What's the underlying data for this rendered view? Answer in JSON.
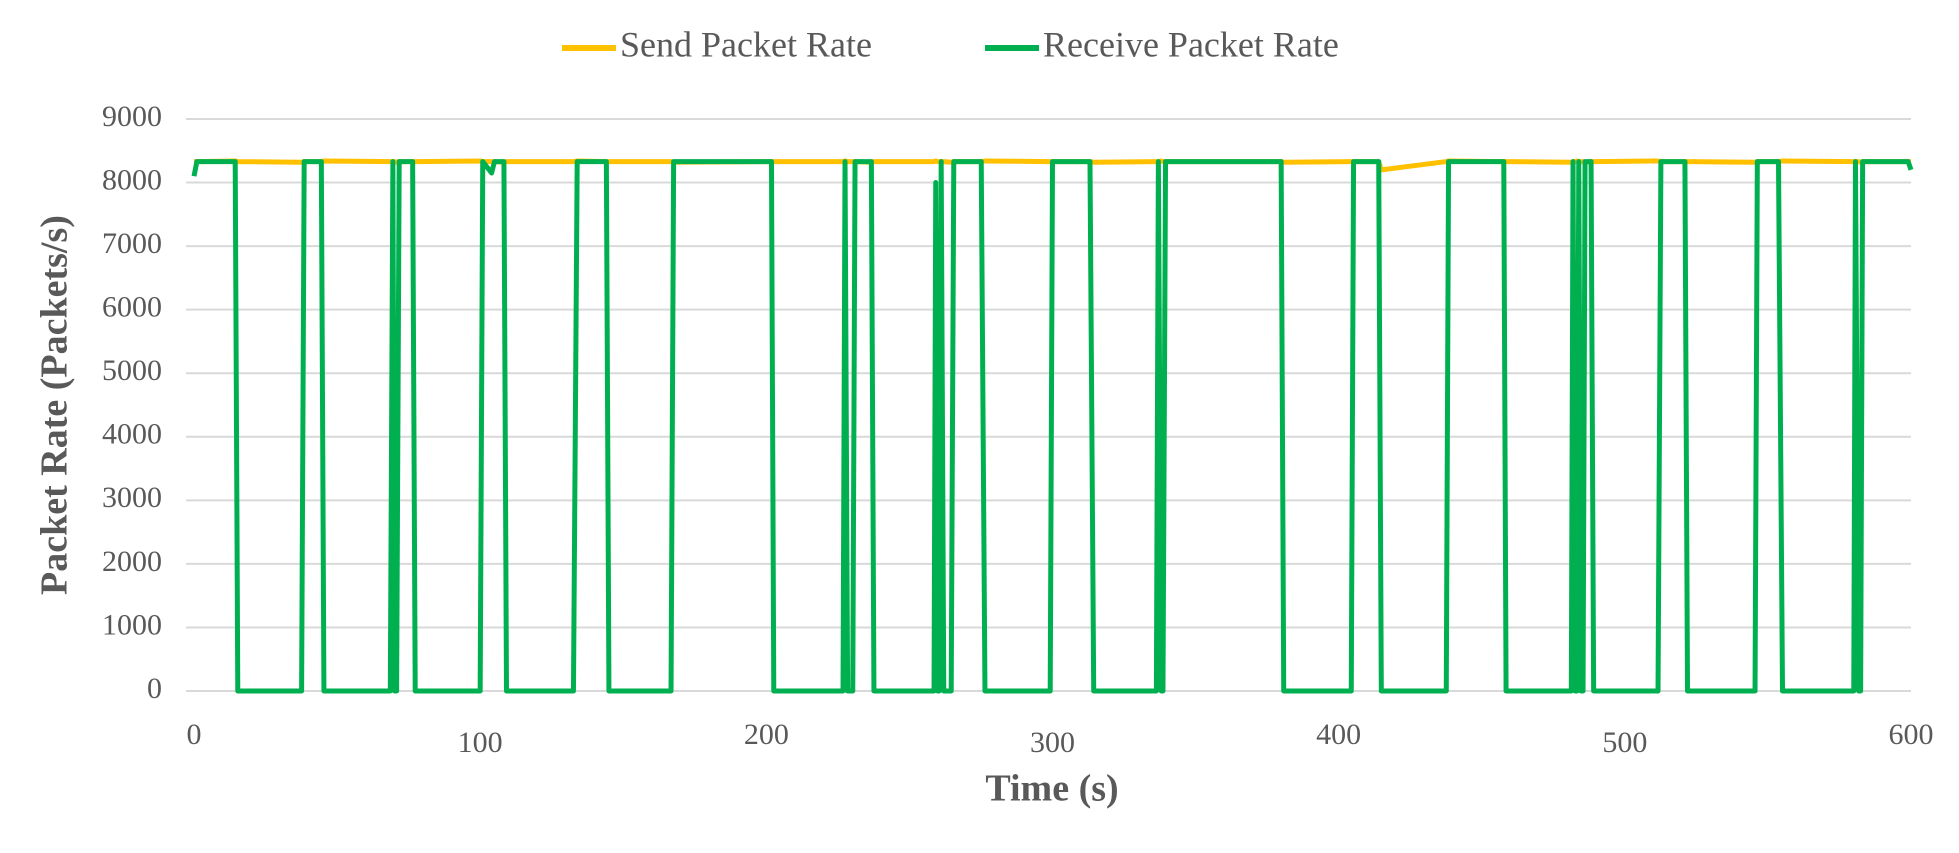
{
  "chart_data": {
    "type": "line",
    "x_label": "Time (s)",
    "y_label": "Packet Rate (Packets/s)",
    "xlim": [
      0,
      600
    ],
    "xticks": [
      0,
      100,
      200,
      300,
      400,
      500,
      600
    ],
    "ylim": [
      0,
      9000
    ],
    "yticks": [
      0,
      1000,
      2000,
      3000,
      4000,
      5000,
      6000,
      7000,
      8000,
      9000
    ],
    "grid": true,
    "legend": "top",
    "x": [
      0,
      1,
      14.4,
      15.3,
      37.6,
      38.5,
      44.5,
      45.4,
      68.6,
      69.5,
      70.1,
      70.8,
      71.7,
      76.4,
      77.3,
      100,
      100.9,
      104,
      105,
      108.3,
      109.2,
      132.6,
      133.9,
      144.1,
      145,
      166.7,
      167.6,
      201.8,
      202.6,
      226.8,
      227.5,
      228.4,
      230.2,
      231,
      236.7,
      237.6,
      258.6,
      259.2,
      259.8,
      260.4,
      261.1,
      262,
      264.6,
      265.5,
      275.1,
      276.4,
      299.2,
      300,
      313.1,
      314.4,
      336.3,
      337,
      338,
      338.6,
      339.5,
      379.9,
      380.8,
      404.4,
      405.2,
      414,
      414.9,
      437.6,
      438.4,
      457.7,
      458.5,
      481.3,
      481.9,
      482.6,
      483.3,
      483.9,
      484.7,
      485.4,
      486.1,
      488.2,
      489.1,
      511.6,
      512.6,
      521,
      521.9,
      545.5,
      546.3,
      553.7,
      555.1,
      580,
      580.6,
      581.7,
      582.4,
      583.1,
      599,
      600
    ],
    "series": [
      {
        "name": "Send Packet Rate",
        "color": "#ffc000",
        "values": [
          8330,
          8330,
          8340,
          8330,
          8320,
          8330,
          8330,
          8340,
          8330,
          8330,
          8330,
          8320,
          8330,
          8330,
          8330,
          8340,
          8330,
          8330,
          8330,
          8320,
          8330,
          8330,
          8340,
          8330,
          8330,
          8330,
          8320,
          8330,
          8330,
          8330,
          8340,
          8330,
          8330,
          8330,
          8320,
          8330,
          8330,
          8340,
          8330,
          8330,
          8330,
          8330,
          8320,
          8330,
          8330,
          8340,
          8330,
          8330,
          8330,
          8320,
          8330,
          8330,
          8340,
          8330,
          8330,
          8330,
          8320,
          8330,
          8330,
          8330,
          8200,
          8330,
          8340,
          8330,
          8330,
          8320,
          8330,
          8330,
          8340,
          8330,
          8330,
          8330,
          8320,
          8330,
          8330,
          8340,
          8330,
          8330,
          8330,
          8320,
          8330,
          8330,
          8340,
          8330,
          8330,
          8330,
          8320,
          8330,
          8330,
          8330
        ]
      },
      {
        "name": "Receive Packet Rate",
        "color": "#00b050",
        "values": [
          8100,
          8330,
          8330,
          0,
          0,
          8330,
          8330,
          0,
          0,
          8330,
          0,
          0,
          8330,
          8330,
          0,
          0,
          8330,
          8150,
          8330,
          8330,
          0,
          0,
          8330,
          8330,
          0,
          0,
          8330,
          8330,
          0,
          0,
          8330,
          0,
          0,
          8330,
          8330,
          0,
          0,
          8000,
          0,
          0,
          8330,
          0,
          0,
          8330,
          8330,
          0,
          0,
          8330,
          8330,
          0,
          0,
          8330,
          0,
          0,
          8330,
          8330,
          0,
          0,
          8330,
          8330,
          0,
          0,
          8330,
          8330,
          0,
          0,
          8330,
          0,
          0,
          8330,
          0,
          0,
          8330,
          8330,
          0,
          0,
          8330,
          8330,
          0,
          0,
          8330,
          8330,
          0,
          0,
          8330,
          0,
          0,
          8330,
          8330,
          8200
        ]
      }
    ]
  }
}
